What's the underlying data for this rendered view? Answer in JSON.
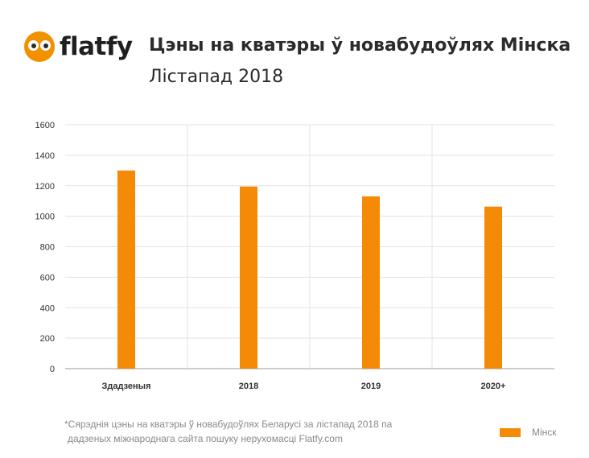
{
  "logo": {
    "text": "flatfy"
  },
  "title": "Цэны на кватэры ў новабудоўлях Мінска",
  "subtitle": "Лістапад 2018",
  "chart_data": {
    "type": "bar",
    "categories": [
      "Здадзеныя",
      "2018",
      "2019",
      "2020+"
    ],
    "series": [
      {
        "name": "Мінск",
        "values": [
          1300,
          1195,
          1130,
          1063
        ],
        "color": "#f58a07"
      }
    ],
    "ylim": [
      0,
      1600
    ],
    "yticks": [
      0,
      200,
      400,
      600,
      800,
      1000,
      1200,
      1400,
      1600
    ],
    "grid": true,
    "legend": "bottom-right",
    "xlabel": "",
    "ylabel": ""
  },
  "footnote": {
    "line1": "*Сярэднія цэны на кватэры ў новабудоўлях Беларусі за лістапад 2018 па",
    "line2": "дадзеных міжнароднага сайта пошуку нерухомасці Flatfy.com"
  }
}
